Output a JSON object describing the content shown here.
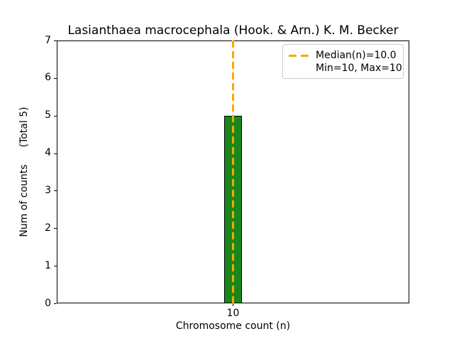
{
  "chart_data": {
    "type": "bar",
    "title": "Lasianthaea macrocephala (Hook. & Arn.) K. M. Becker",
    "xlabel": "Chromosome count (n)",
    "ylabel": "Num of counts",
    "ylabel_secondary": "(Total 5)",
    "categories": [
      "10"
    ],
    "values": [
      5
    ],
    "x_values": [
      10
    ],
    "ylim": [
      0,
      7
    ],
    "yticks": [
      0,
      1,
      2,
      3,
      4,
      5,
      6,
      7
    ],
    "total_counts": 5,
    "median_n": 10.0,
    "min_n": 10,
    "max_n": 10,
    "grid": false,
    "legend": {
      "position": "upper right",
      "entries": [
        {
          "label": "Median(n)=10.0",
          "marker": "orange-dashed-line"
        },
        {
          "label": "Min=10, Max=10",
          "marker": "none"
        }
      ]
    },
    "colors": {
      "background": "#ffffff",
      "bar_fill": "#1a871a",
      "bar_edge": "#000000",
      "median_line": "#ffa500",
      "legend_border": "#cccccc",
      "axis": "#000000",
      "text": "#000000"
    }
  }
}
